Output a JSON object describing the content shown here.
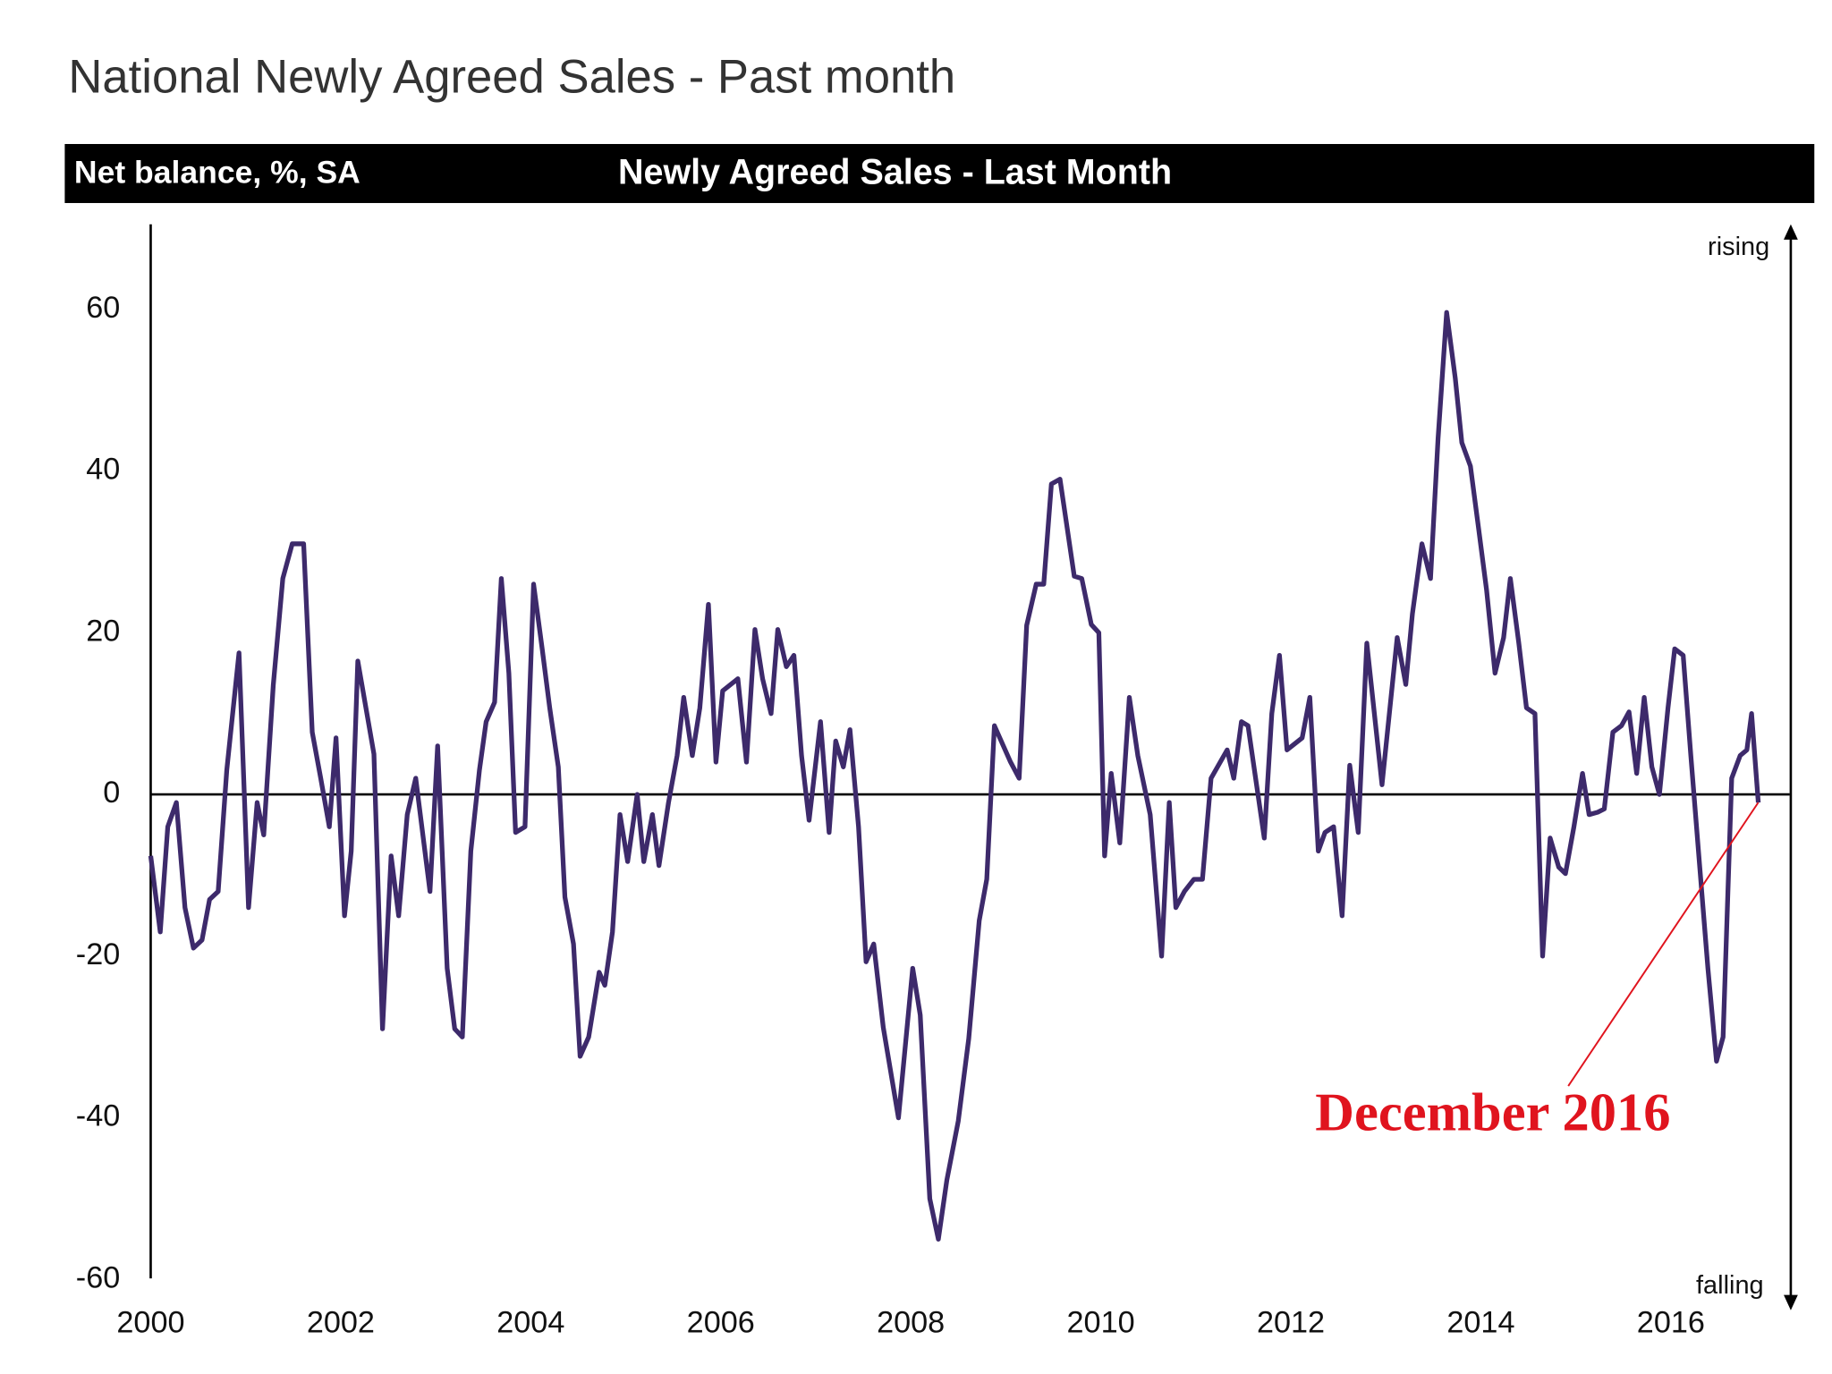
{
  "chart_data": {
    "type": "line",
    "title": "National Newly Agreed Sales - Past month",
    "y_label": "Net balance, %, SA",
    "subtitle": "Newly Agreed Sales - Last Month",
    "annotations": {
      "top": "rising",
      "bottom": "falling",
      "callout": "December 2016"
    },
    "color": "#3d2a6b",
    "callout_color": "#e0141e",
    "x": [
      2000.0,
      2000.1,
      2000.18,
      2000.27,
      2000.36,
      2000.45,
      2000.54,
      2000.62,
      2000.71,
      2000.8,
      2000.93,
      2001.03,
      2001.12,
      2001.19,
      2001.29,
      2001.39,
      2001.49,
      2001.61,
      2001.7,
      2001.79,
      2001.88,
      2001.95,
      2002.04,
      2002.11,
      2002.18,
      2002.35,
      2002.44,
      2002.53,
      2002.61,
      2002.7,
      2002.79,
      2002.94,
      2003.02,
      2003.12,
      2003.2,
      2003.28,
      2003.37,
      2003.46,
      2003.53,
      2003.62,
      2003.69,
      2003.77,
      2003.84,
      2003.94,
      2004.03,
      2004.12,
      2004.2,
      2004.29,
      2004.36,
      2004.45,
      2004.52,
      2004.61,
      2004.72,
      2004.78,
      2004.86,
      2004.94,
      2005.02,
      2005.12,
      2005.19,
      2005.28,
      2005.35,
      2005.45,
      2005.54,
      2005.61,
      2005.7,
      2005.78,
      2005.87,
      2005.95,
      2006.02,
      2006.18,
      2006.27,
      2006.36,
      2006.44,
      2006.53,
      2006.6,
      2006.69,
      2006.77,
      2006.85,
      2006.93,
      2007.05,
      2007.14,
      2007.21,
      2007.29,
      2007.36,
      2007.45,
      2007.53,
      2007.61,
      2007.71,
      2007.87,
      2008.02,
      2008.1,
      2008.2,
      2008.29,
      2008.38,
      2008.5,
      2008.61,
      2008.72,
      2008.8,
      2008.88,
      2009.05,
      2009.14,
      2009.22,
      2009.32,
      2009.4,
      2009.48,
      2009.57,
      2009.72,
      2009.8,
      2009.9,
      2009.98,
      2010.04,
      2010.11,
      2010.2,
      2010.3,
      2010.39,
      2010.52,
      2010.64,
      2010.72,
      2010.79,
      2010.88,
      2010.98,
      2011.07,
      2011.16,
      2011.33,
      2011.4,
      2011.48,
      2011.55,
      2011.72,
      2011.8,
      2011.88,
      2011.96,
      2012.12,
      2012.2,
      2012.29,
      2012.36,
      2012.45,
      2012.54,
      2012.62,
      2012.71,
      2012.8,
      2012.96,
      2013.12,
      2013.21,
      2013.28,
      2013.38,
      2013.47,
      2013.55,
      2013.64,
      2013.73,
      2013.8,
      2013.89,
      2013.98,
      2014.06,
      2014.15,
      2014.24,
      2014.31,
      2014.4,
      2014.48,
      2014.57,
      2014.65,
      2014.73,
      2014.82,
      2014.89,
      2014.98,
      2015.07,
      2015.14,
      2015.23,
      2015.3,
      2015.39,
      2015.48,
      2015.56,
      2015.64,
      2015.72,
      2015.8,
      2015.88,
      2015.97,
      2016.04,
      2016.13,
      2016.21,
      2016.3,
      2016.39,
      2016.48,
      2016.55,
      2016.64,
      2016.73,
      2016.8,
      2016.85,
      2016.92
    ],
    "values": [
      -7.6,
      -17,
      -4,
      -1,
      -14,
      -19,
      -18,
      -13,
      -12,
      3,
      17.5,
      -14,
      -1,
      -5,
      13.5,
      26.7,
      31,
      31,
      7.7,
      2,
      -4,
      7,
      -15,
      -7,
      16.5,
      5,
      -29,
      -7.6,
      -15,
      -2.5,
      2,
      -12,
      6,
      -21.5,
      -29,
      -30,
      -7,
      3,
      9,
      11.4,
      26.7,
      15,
      -4.7,
      -4,
      26,
      18,
      10.7,
      3.4,
      -12.7,
      -18.5,
      -32.4,
      -30,
      -22,
      -23.6,
      -17,
      -2.5,
      -8.3,
      0,
      -8.3,
      -2.5,
      -8.8,
      -1,
      4.8,
      12,
      4.8,
      10.7,
      23.5,
      4,
      12.8,
      14.3,
      4,
      20.4,
      14.3,
      10,
      20.4,
      15.8,
      17.2,
      4.8,
      -3.2,
      9,
      -4.7,
      6.6,
      3.4,
      8,
      -4,
      -20.7,
      -18.5,
      -28.8,
      -40,
      -21.5,
      -27.3,
      -50,
      -55,
      -47.7,
      -40.4,
      -30.2,
      -15.6,
      -10.5,
      8.5,
      4,
      2,
      20.9,
      26,
      26,
      38.4,
      39,
      27,
      26.7,
      21,
      20,
      -7.6,
      2.6,
      -6,
      12,
      4.8,
      -2.5,
      -20,
      -1,
      -14,
      -12,
      -10.5,
      -10.5,
      2,
      5.5,
      2,
      9,
      8.5,
      -5.4,
      10,
      17.2,
      5.5,
      7,
      12,
      -7,
      -4.7,
      -4,
      -15,
      3.6,
      -4.7,
      18.7,
      1.2,
      19.4,
      13.6,
      22.3,
      31,
      26.7,
      44,
      59.6,
      51.5,
      43.5,
      40.6,
      32.6,
      25.3,
      15,
      19.4,
      26.7,
      18.7,
      10.7,
      10,
      -20,
      -5.4,
      -9,
      -9.8,
      -4,
      2.6,
      -2.5,
      -2.2,
      -1.8,
      7.7,
      8.5,
      10.2,
      2.6,
      12,
      3.4,
      0,
      10.7,
      18,
      17.2,
      4.8,
      -8.3,
      -21.5,
      -33,
      -30,
      2,
      4.8,
      5.5,
      10,
      -1
    ],
    "xlim": [
      2000,
      2017.25
    ],
    "xticks": [
      2000,
      2002,
      2004,
      2006,
      2008,
      2010,
      2012,
      2014,
      2016
    ],
    "ylim": [
      -60,
      70
    ],
    "yticks": [
      -60,
      -40,
      -20,
      0,
      20,
      40,
      60
    ],
    "zero_line": true
  }
}
